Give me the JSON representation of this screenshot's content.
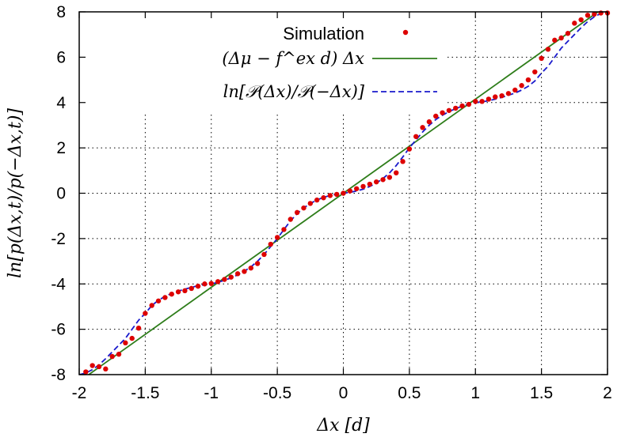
{
  "chart_data": {
    "type": "scatter",
    "title": "",
    "xlabel": "Δx [d]",
    "ylabel": "ln[p(Δx,t)/p(−Δx,t)]",
    "xlim": [
      -2,
      2
    ],
    "ylim": [
      -8,
      8
    ],
    "xticks": [
      -2,
      -1.5,
      -1,
      -0.5,
      0,
      0.5,
      1,
      1.5,
      2
    ],
    "xtick_labels": [
      "-2",
      "-1.5",
      "-1",
      "-0.5",
      "0",
      "0.5",
      "1",
      "1.5",
      "2"
    ],
    "yticks": [
      -8,
      -6,
      -4,
      -2,
      0,
      2,
      4,
      6,
      8
    ],
    "ytick_labels": [
      "-8",
      "-6",
      "-4",
      "-2",
      "0",
      "2",
      "4",
      "6",
      "8"
    ],
    "grid": true,
    "legend_position": "top-left",
    "series": [
      {
        "name": "Simulation",
        "kind": "points",
        "color": "#dd0000",
        "x": [
          -1.95,
          -1.9,
          -1.85,
          -1.8,
          -1.75,
          -1.7,
          -1.65,
          -1.6,
          -1.55,
          -1.5,
          -1.45,
          -1.4,
          -1.35,
          -1.3,
          -1.25,
          -1.2,
          -1.15,
          -1.1,
          -1.05,
          -1.0,
          -0.95,
          -0.9,
          -0.85,
          -0.8,
          -0.75,
          -0.7,
          -0.65,
          -0.6,
          -0.55,
          -0.5,
          -0.45,
          -0.4,
          -0.35,
          -0.3,
          -0.25,
          -0.2,
          -0.15,
          -0.1,
          -0.05,
          0.0,
          0.05,
          0.1,
          0.15,
          0.2,
          0.25,
          0.3,
          0.35,
          0.4,
          0.45,
          0.5,
          0.55,
          0.6,
          0.65,
          0.7,
          0.75,
          0.8,
          0.85,
          0.9,
          0.95,
          1.0,
          1.05,
          1.1,
          1.15,
          1.2,
          1.25,
          1.3,
          1.35,
          1.4,
          1.45,
          1.5,
          1.55,
          1.6,
          1.65,
          1.7,
          1.75,
          1.8,
          1.85,
          1.9,
          1.95,
          2.0
        ],
        "y": [
          -7.88,
          -7.6,
          -7.65,
          -7.75,
          -7.2,
          -7.1,
          -6.6,
          -6.4,
          -5.95,
          -5.3,
          -4.95,
          -4.75,
          -4.6,
          -4.45,
          -4.35,
          -4.3,
          -4.2,
          -4.1,
          -4.0,
          -3.98,
          -3.9,
          -3.8,
          -3.7,
          -3.55,
          -3.45,
          -3.3,
          -3.1,
          -2.7,
          -2.25,
          -1.95,
          -1.6,
          -1.15,
          -0.85,
          -0.65,
          -0.45,
          -0.3,
          -0.2,
          -0.1,
          -0.05,
          0.0,
          0.1,
          0.2,
          0.3,
          0.4,
          0.5,
          0.6,
          0.7,
          0.9,
          1.4,
          1.95,
          2.5,
          2.9,
          3.15,
          3.4,
          3.55,
          3.65,
          3.75,
          3.85,
          3.92,
          4.05,
          4.05,
          4.15,
          4.25,
          4.3,
          4.4,
          4.55,
          4.75,
          5.0,
          5.35,
          5.95,
          6.35,
          6.75,
          6.85,
          7.05,
          7.5,
          7.65,
          7.85,
          7.9,
          7.95,
          7.95
        ]
      },
      {
        "name": "(Δμ − f^ex d) Δx",
        "kind": "line",
        "color": "#2e7d1a",
        "x": [
          -2,
          2
        ],
        "y": [
          -8.3,
          8.3
        ]
      },
      {
        "name": "ln[𝒫(Δx)/𝒫(−Δx)]",
        "kind": "dashed-line",
        "color": "#1a1acc",
        "x": [
          -2.0,
          -1.95,
          -1.9,
          -1.85,
          -1.8,
          -1.75,
          -1.7,
          -1.65,
          -1.6,
          -1.55,
          -1.5,
          -1.45,
          -1.4,
          -1.35,
          -1.3,
          -1.25,
          -1.2,
          -1.15,
          -1.1,
          -1.05,
          -1.0,
          -0.95,
          -0.9,
          -0.85,
          -0.8,
          -0.75,
          -0.7,
          -0.65,
          -0.6,
          -0.55,
          -0.5,
          -0.45,
          -0.4,
          -0.35,
          -0.3,
          -0.25,
          -0.2,
          -0.15,
          -0.1,
          -0.05,
          0.0,
          0.05,
          0.1,
          0.15,
          0.2,
          0.25,
          0.3,
          0.35,
          0.4,
          0.45,
          0.5,
          0.55,
          0.6,
          0.65,
          0.7,
          0.75,
          0.8,
          0.85,
          0.9,
          0.95,
          1.0,
          1.05,
          1.1,
          1.15,
          1.2,
          1.25,
          1.3,
          1.35,
          1.4,
          1.45,
          1.5,
          1.55,
          1.6,
          1.65,
          1.7,
          1.75,
          1.8,
          1.85,
          1.9,
          1.95,
          2.0
        ],
        "y": [
          -8.0,
          -7.93,
          -7.78,
          -7.57,
          -7.3,
          -7.0,
          -6.7,
          -6.4,
          -6.0,
          -5.6,
          -5.3,
          -4.95,
          -4.72,
          -4.55,
          -4.42,
          -4.32,
          -4.23,
          -4.15,
          -4.08,
          -4.03,
          -4.0,
          -3.93,
          -3.84,
          -3.73,
          -3.6,
          -3.44,
          -3.25,
          -3.0,
          -2.7,
          -2.35,
          -2.0,
          -1.6,
          -1.22,
          -0.9,
          -0.65,
          -0.45,
          -0.3,
          -0.18,
          -0.1,
          -0.04,
          0.0,
          0.04,
          0.1,
          0.18,
          0.3,
          0.45,
          0.65,
          0.9,
          1.22,
          1.6,
          2.0,
          2.35,
          2.7,
          3.0,
          3.25,
          3.44,
          3.6,
          3.73,
          3.84,
          3.93,
          4.0,
          4.03,
          4.08,
          4.15,
          4.23,
          4.32,
          4.42,
          4.55,
          4.72,
          4.95,
          5.3,
          5.6,
          6.0,
          6.4,
          6.7,
          7.0,
          7.3,
          7.57,
          7.78,
          7.93,
          8.0
        ]
      }
    ]
  }
}
